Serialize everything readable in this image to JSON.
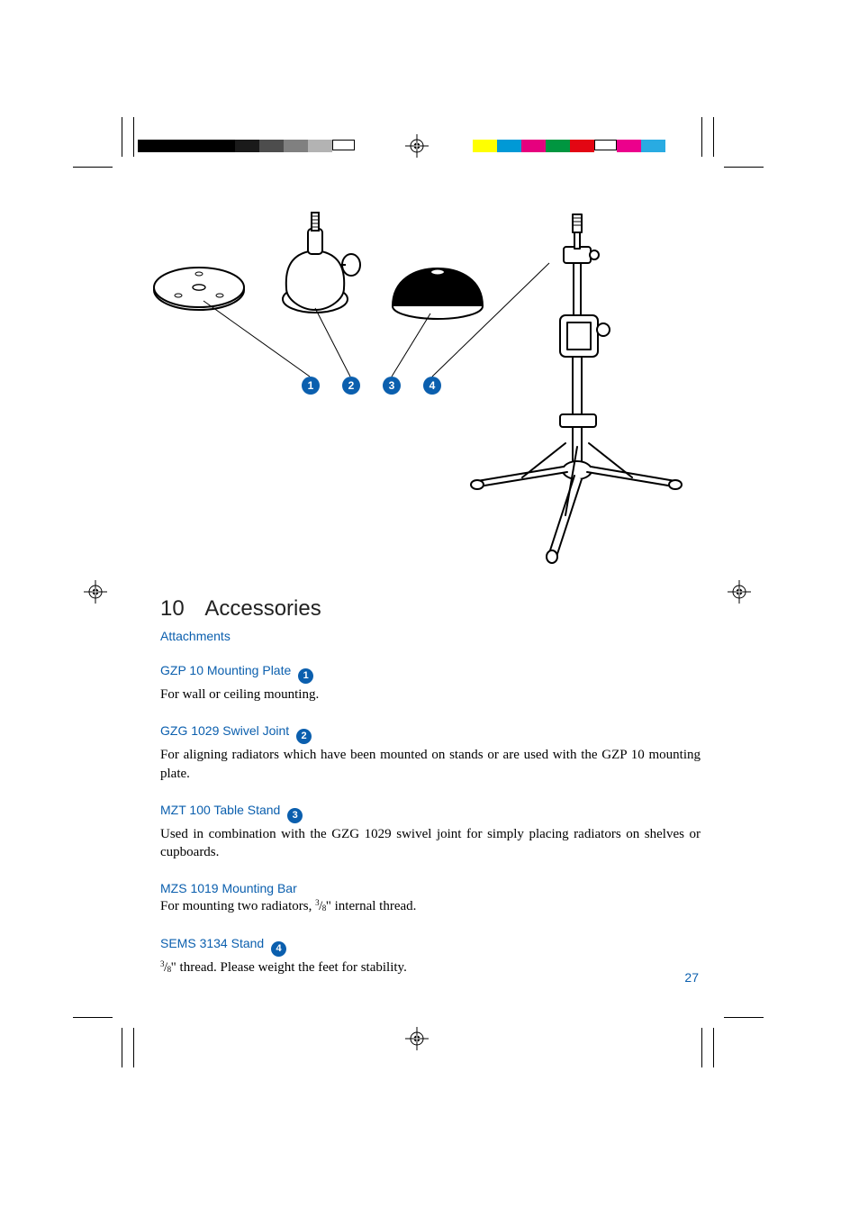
{
  "printmarks": {
    "grayscale_bar": [
      "#000000",
      "#000000",
      "#000000",
      "#000000",
      "#1a1a1a",
      "#4d4d4d",
      "#808080",
      "#b3b3b3",
      "#ffffff"
    ],
    "color_bar": [
      "#ffff00",
      "#0099d6",
      "#e6007e",
      "#009640",
      "#e30613",
      "#ffffff",
      "#ec008c",
      "#29abe2"
    ]
  },
  "section": {
    "number": "10",
    "title": "Accessories"
  },
  "subhead": "Attachments",
  "callouts": [
    "1",
    "2",
    "3",
    "4"
  ],
  "items": [
    {
      "title": "GZP 10 Mounting Plate",
      "callout": "1",
      "body": "For wall or ceiling mounting."
    },
    {
      "title": "GZG 1029 Swivel Joint",
      "callout": "2",
      "body": "For aligning radiators which have been mounted on stands or are used with the GZP 10 mounting plate."
    },
    {
      "title": "MZT 100 Table Stand",
      "callout": "3",
      "body": "Used in combination with the GZG 1029 swivel joint for simply placing radiators on shelves or cupboards."
    },
    {
      "title": "MZS 1019 Mounting Bar",
      "callout": null,
      "body": "For mounting two radiators, {frac38}\" internal thread."
    },
    {
      "title": "SEMS 3134 Stand",
      "callout": "4",
      "body": "{frac38}\" thread. Please weight the feet for stability."
    }
  ],
  "page_number": "27",
  "colors": {
    "link_blue": "#0b5fae",
    "text_black": "#000000"
  }
}
